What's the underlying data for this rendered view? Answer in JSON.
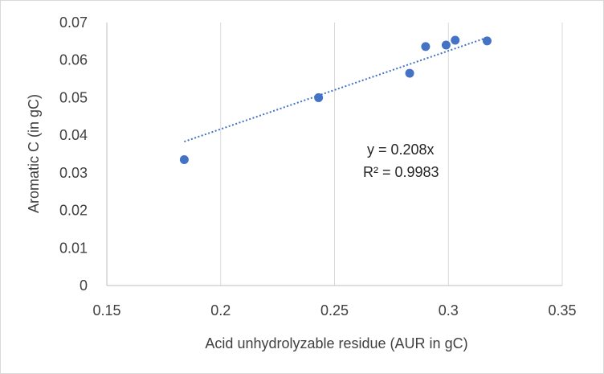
{
  "chart_data": {
    "type": "scatter",
    "xlabel": "Acid unhydrolyzable residue (AUR in gC)",
    "ylabel": "Aromatic C (in gC)",
    "xlim": [
      0.15,
      0.35
    ],
    "ylim": [
      0,
      0.07
    ],
    "x_ticks": [
      0.15,
      0.2,
      0.25,
      0.3,
      0.35
    ],
    "x_tick_labels": [
      "0.15",
      "0.2",
      "0.25",
      "0.3",
      "0.35"
    ],
    "y_ticks": [
      0,
      0.01,
      0.02,
      0.03,
      0.04,
      0.05,
      0.06,
      0.07
    ],
    "y_tick_labels": [
      "0",
      "0.01",
      "0.02",
      "0.03",
      "0.04",
      "0.05",
      "0.06",
      "0.07"
    ],
    "grid": "vertical",
    "series": [
      {
        "color": "#4472c4",
        "points": [
          {
            "x": 0.184,
            "y": 0.0335
          },
          {
            "x": 0.243,
            "y": 0.05
          },
          {
            "x": 0.283,
            "y": 0.0565
          },
          {
            "x": 0.29,
            "y": 0.0636
          },
          {
            "x": 0.299,
            "y": 0.064
          },
          {
            "x": 0.303,
            "y": 0.0653
          },
          {
            "x": 0.317,
            "y": 0.0651
          }
        ]
      }
    ],
    "trendline": {
      "type": "linear",
      "style": "dotted",
      "color": "#4472c4",
      "x_range": [
        0.184,
        0.317
      ],
      "start_y": 0.0383,
      "end_y": 0.066
    },
    "annotations": {
      "equation": "y = 0.208x",
      "r_squared": "R² = 0.9983"
    }
  }
}
